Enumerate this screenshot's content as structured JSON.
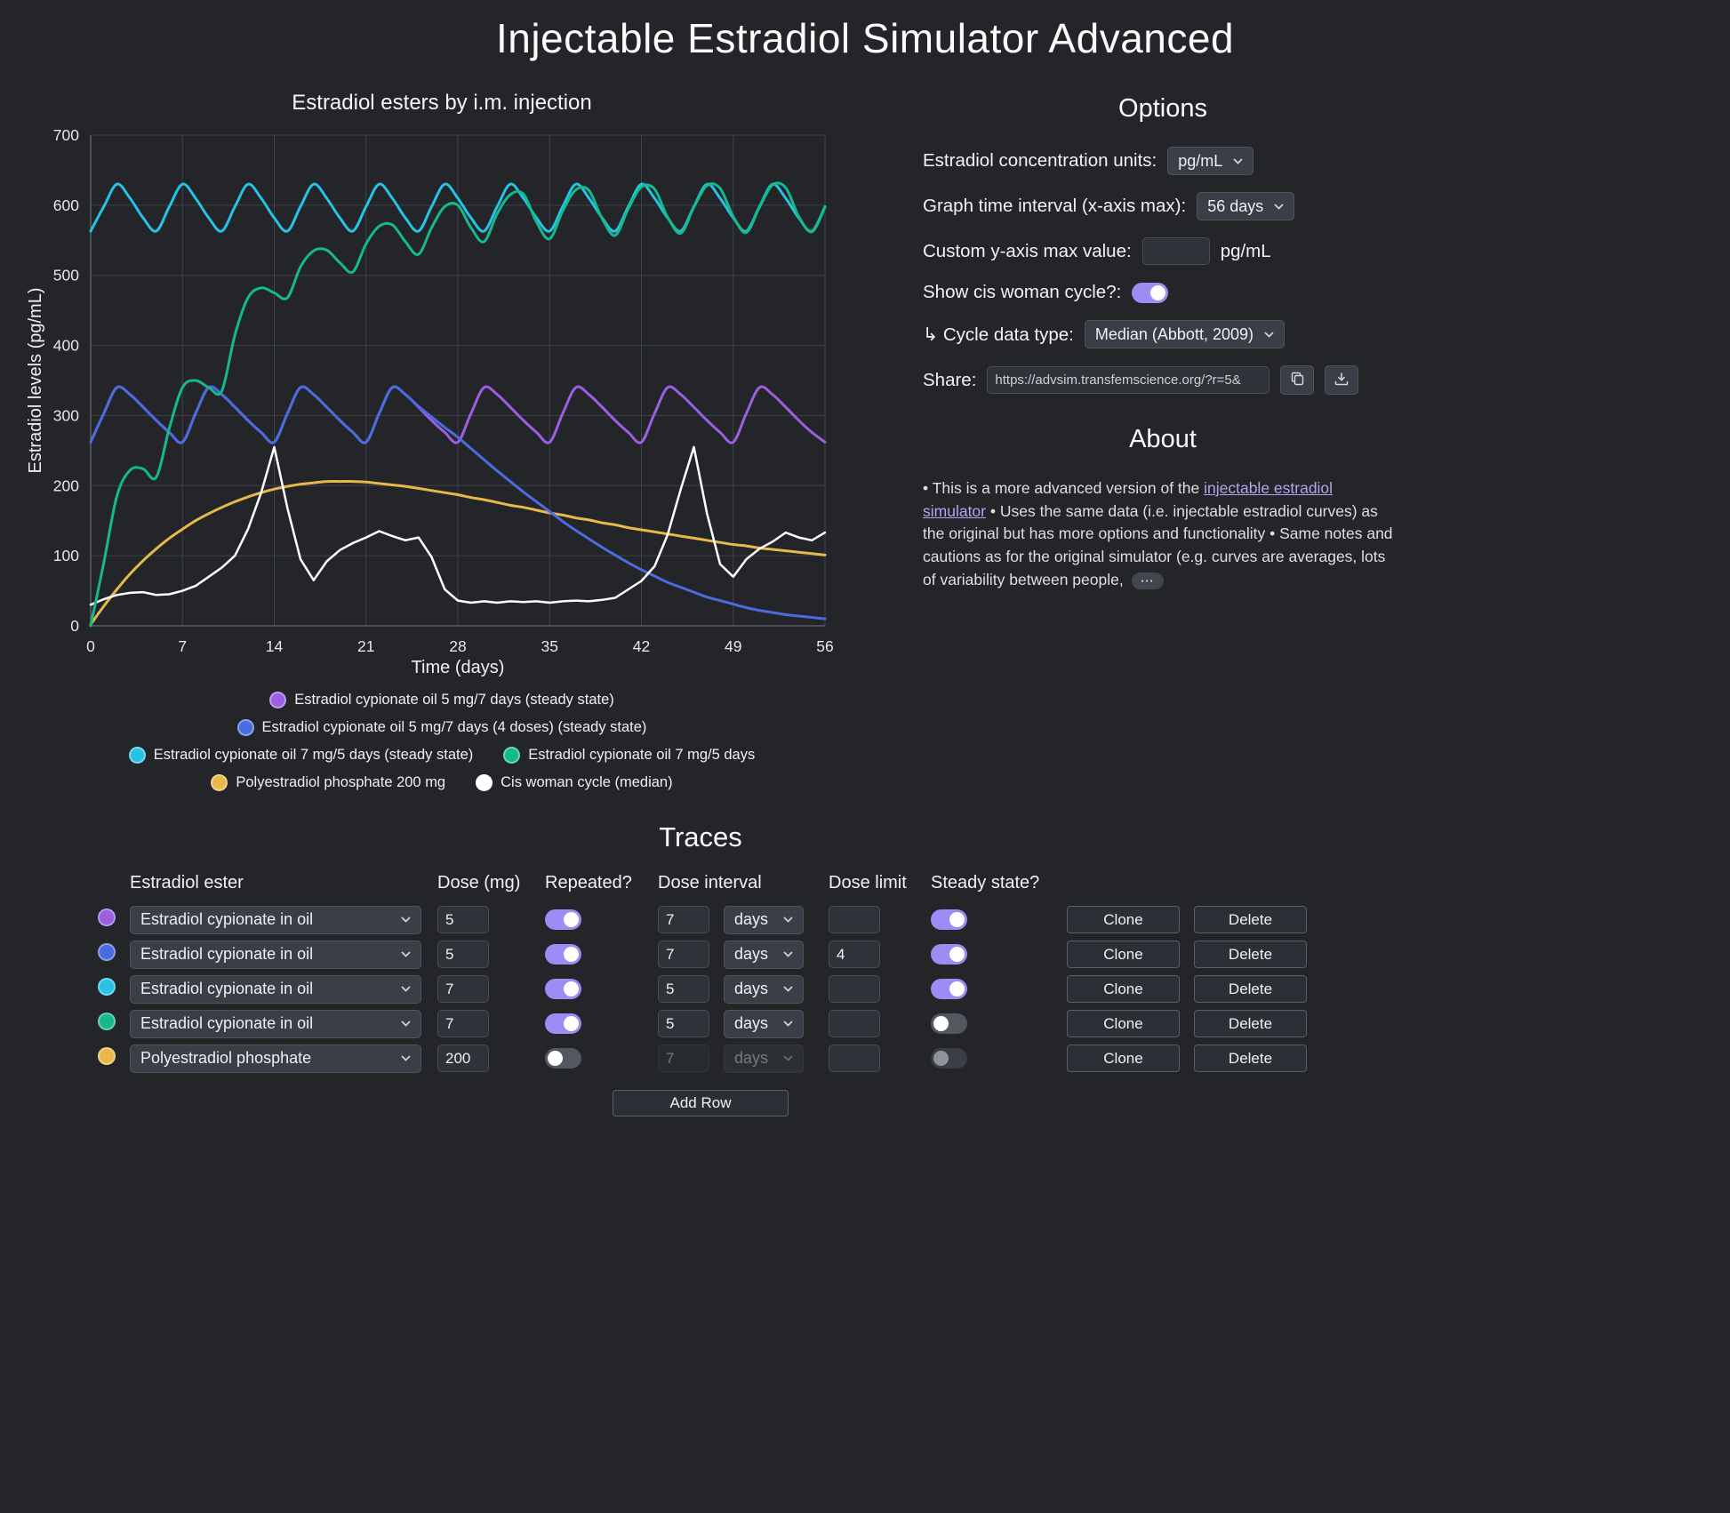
{
  "title": "Injectable Estradiol Simulator Advanced",
  "colors": {
    "accent_toggle": "#9c8cf4",
    "link": "#b4a4ef",
    "background": "#232529"
  },
  "icons": {
    "chevron_down": "▾",
    "copy": "⧉",
    "download": "⤓",
    "ellipsis": "⋯"
  },
  "chart_data": {
    "type": "line",
    "title": "Estradiol esters by i.m. injection",
    "xlabel": "Time (days)",
    "ylabel": "Estradiol levels (pg/mL)",
    "xlim": [
      0,
      56
    ],
    "ylim": [
      0,
      700
    ],
    "x_ticks": [
      0,
      7,
      14,
      21,
      28,
      35,
      42,
      49,
      56
    ],
    "y_ticks": [
      0,
      100,
      200,
      300,
      400,
      500,
      600,
      700
    ],
    "grid": true,
    "legend_position": "bottom",
    "grid_color": "#3e424a",
    "axis_color": "#63676f",
    "tick_color": "#e6e7ea",
    "legend_rows": [
      [
        0
      ],
      [
        1
      ],
      [
        2,
        3
      ],
      [
        4,
        5
      ]
    ],
    "draw_order": [
      4,
      0,
      1,
      5,
      2,
      3
    ],
    "series": [
      {
        "name": "Estradiol cypionate oil 5 mg/7 days (steady state)",
        "color": "#9d5fe2",
        "smooth": true,
        "line_width": 3,
        "x_start": 0,
        "x_step": 1,
        "values": [
          262,
          303,
          340,
          330,
          312,
          293,
          276,
          262,
          303,
          340,
          330,
          312,
          293,
          276,
          262,
          303,
          340,
          330,
          312,
          293,
          276,
          262,
          303,
          340,
          330,
          312,
          293,
          276,
          262,
          303,
          340,
          330,
          312,
          293,
          276,
          262,
          303,
          340,
          330,
          312,
          293,
          276,
          262,
          303,
          340,
          330,
          312,
          293,
          276,
          262,
          303,
          340,
          330,
          312,
          293,
          276,
          262
        ]
      },
      {
        "name": "Estradiol cypionate oil 5 mg/7 days (4 doses) (steady state)",
        "color": "#4a6cdf",
        "smooth": true,
        "line_width": 3,
        "x_start": 0,
        "x_step": 1,
        "values": [
          262,
          303,
          340,
          330,
          312,
          293,
          276,
          262,
          303,
          340,
          330,
          312,
          293,
          276,
          262,
          303,
          340,
          330,
          312,
          293,
          276,
          262,
          303,
          340,
          330,
          313,
          298,
          283,
          269,
          253,
          237,
          221,
          206,
          191,
          177,
          163,
          149,
          136,
          124,
          112,
          101,
          90,
          80,
          71,
          62,
          55,
          48,
          41,
          36,
          31,
          26,
          22,
          19,
          16,
          14,
          12,
          10
        ]
      },
      {
        "name": "Estradiol cypionate oil 7 mg/5 days (steady state)",
        "color": "#27c2e6",
        "smooth": true,
        "line_width": 3,
        "x_start": 0,
        "x_step": 1,
        "values": [
          563,
          598,
          630,
          610,
          582,
          563,
          598,
          630,
          610,
          582,
          563,
          598,
          630,
          610,
          582,
          563,
          598,
          630,
          610,
          582,
          563,
          598,
          630,
          610,
          582,
          563,
          598,
          630,
          610,
          582,
          563,
          598,
          630,
          610,
          582,
          563,
          598,
          630,
          610,
          582,
          563,
          598,
          630,
          610,
          582,
          563,
          598,
          630,
          610,
          582,
          563,
          598,
          630,
          610,
          582,
          563,
          598
        ]
      },
      {
        "name": "Estradiol cypionate oil 7 mg/5 days",
        "color": "#15b98c",
        "smooth": true,
        "line_width": 3,
        "x_start": 0,
        "x_step": 1,
        "values": [
          0,
          90,
          185,
          222,
          224,
          212,
          282,
          340,
          350,
          340,
          335,
          415,
          468,
          482,
          475,
          468,
          512,
          535,
          536,
          518,
          505,
          545,
          570,
          572,
          548,
          530,
          568,
          598,
          600,
          568,
          548,
          588,
          615,
          616,
          576,
          552,
          592,
          622,
          621,
          581,
          557,
          595,
          626,
          623,
          583,
          560,
          597,
          628,
          624,
          584,
          561,
          597,
          629,
          625,
          584,
          562,
          597
        ]
      },
      {
        "name": "Polyestradiol phosphate 200 mg",
        "color": "#e8b94a",
        "smooth": true,
        "line_width": 3,
        "x_start": 0,
        "x_step": 1,
        "values": [
          2,
          28,
          52,
          74,
          93,
          110,
          125,
          138,
          150,
          160,
          169,
          177,
          184,
          190,
          195,
          199,
          202,
          204,
          206,
          206,
          206,
          205,
          203,
          201,
          199,
          196,
          193,
          190,
          187,
          183,
          180,
          176,
          172,
          169,
          165,
          161,
          158,
          154,
          151,
          147,
          144,
          140,
          137,
          134,
          131,
          128,
          125,
          122,
          119,
          116,
          114,
          111,
          109,
          107,
          105,
          103,
          101
        ]
      },
      {
        "name": "Cis woman cycle (median)",
        "color": "#ffffff",
        "smooth": false,
        "line_width": 2.5,
        "x_start": 0,
        "x_step": 1,
        "values": [
          30,
          38,
          44,
          47,
          48,
          44,
          45,
          50,
          57,
          70,
          83,
          100,
          138,
          190,
          255,
          168,
          95,
          65,
          92,
          108,
          118,
          126,
          135,
          128,
          122,
          126,
          98,
          52,
          36,
          33,
          35,
          33,
          35,
          34,
          35,
          33,
          35,
          36,
          35,
          37,
          40,
          52,
          64,
          85,
          130,
          195,
          255,
          160,
          88,
          70,
          95,
          110,
          120,
          133,
          126,
          122,
          133
        ]
      }
    ]
  },
  "options": {
    "heading": "Options",
    "units_label": "Estradiol concentration units:",
    "units_value": "pg/mL",
    "interval_label": "Graph time interval (x-axis max):",
    "interval_value": "56 days",
    "ymax_label": "Custom y-axis max value:",
    "ymax_value": "",
    "ymax_unit": "pg/mL",
    "cycle_label": "Show cis woman cycle?:",
    "cycle_toggle": "on",
    "cycle_type_label": "↳ Cycle data type:",
    "cycle_type_value": "Median (Abbott, 2009)",
    "share_label": "Share:",
    "share_url": "https://advsim.transfemscience.org/?r=5&"
  },
  "about": {
    "heading": "About",
    "text_pre": "• This is a more advanced version of the ",
    "link_text": "injectable estradiol simulator",
    "text_post": " • Uses the same data (i.e. injectable estradiol curves) as the original but has more options and functionality • Same notes and cautions as for the original simulator (e.g. curves are averages, lots of variability between people, ",
    "more_label": "⋯"
  },
  "traces": {
    "heading": "Traces",
    "columns": [
      "Estradiol ester",
      "Dose (mg)",
      "Repeated?",
      "Dose interval",
      "Dose limit",
      "Steady state?"
    ],
    "clone_label": "Clone",
    "delete_label": "Delete",
    "add_row_label": "Add Row",
    "rows": [
      {
        "color": "#9d5fe2",
        "ester": "Estradiol cypionate in oil",
        "dose": "5",
        "repeated": "on",
        "interval": "7",
        "unit": "days",
        "limit": "",
        "steady": "on",
        "interval_enabled": true
      },
      {
        "color": "#4a6cdf",
        "ester": "Estradiol cypionate in oil",
        "dose": "5",
        "repeated": "on",
        "interval": "7",
        "unit": "days",
        "limit": "4",
        "steady": "on",
        "interval_enabled": true
      },
      {
        "color": "#27c2e6",
        "ester": "Estradiol cypionate in oil",
        "dose": "7",
        "repeated": "on",
        "interval": "5",
        "unit": "days",
        "limit": "",
        "steady": "on",
        "interval_enabled": true
      },
      {
        "color": "#15b98c",
        "ester": "Estradiol cypionate in oil",
        "dose": "7",
        "repeated": "on",
        "interval": "5",
        "unit": "days",
        "limit": "",
        "steady": "off",
        "interval_enabled": true
      },
      {
        "color": "#e8b94a",
        "ester": "Polyestradiol phosphate",
        "dose": "200",
        "repeated": "off",
        "interval": "7",
        "unit": "days",
        "limit": "",
        "steady": "disabled",
        "interval_enabled": false
      }
    ]
  }
}
